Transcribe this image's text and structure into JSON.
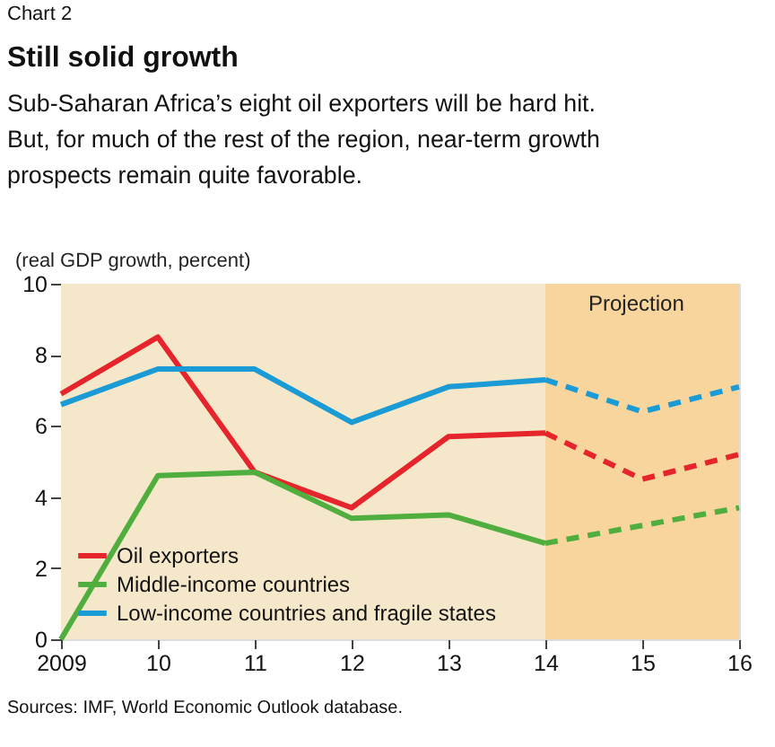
{
  "chart_data": {
    "type": "line",
    "title": "Still solid growth",
    "subtitle": "Sub-Saharan Africa’s eight oil exporters will be hard hit. But, for much of the rest of the region, near-term growth prospects remain quite favorable.",
    "ylabel": "(real GDP growth, percent)",
    "annotations": [
      "Chart 2",
      "Sources: IMF, World Economic Outlook database."
    ],
    "categories": [
      "2009",
      "10",
      "11",
      "12",
      "13",
      "14",
      "15",
      "16"
    ],
    "series": [
      {
        "name": "Oil exporters",
        "color": "#e5252b",
        "values": [
          6.9,
          8.5,
          4.7,
          3.7,
          5.7,
          5.8,
          null,
          null
        ]
      },
      {
        "name": "Middle-income countries",
        "color": "#4fae3e",
        "values": [
          0.0,
          4.6,
          4.7,
          3.4,
          3.5,
          2.7,
          null,
          null
        ]
      },
      {
        "name": "Low-income countries and fragile states",
        "color": "#1b9bd5",
        "values": [
          6.6,
          7.6,
          7.6,
          6.1,
          7.1,
          7.3,
          null,
          null
        ]
      },
      {
        "color": "#e5252b",
        "line_style": "dashed",
        "values": [
          null,
          null,
          null,
          null,
          null,
          5.8,
          4.5,
          5.2
        ]
      },
      {
        "color": "#4fae3e",
        "line_style": "dashed",
        "values": [
          null,
          null,
          null,
          null,
          null,
          2.7,
          3.2,
          3.7
        ]
      },
      {
        "color": "#1b9bd5",
        "line_style": "dashed",
        "values": [
          null,
          null,
          null,
          null,
          null,
          7.3,
          6.4,
          7.1
        ]
      }
    ],
    "bands": [
      {
        "axis": "x",
        "from": "14",
        "to": "16",
        "label": "Projection",
        "color": "#f8d59c"
      }
    ],
    "ylim": [
      0,
      10
    ],
    "yticks": [
      0,
      2,
      4,
      6,
      8,
      10
    ],
    "grid": false,
    "legend": "bottom left",
    "line_style": "solid"
  }
}
